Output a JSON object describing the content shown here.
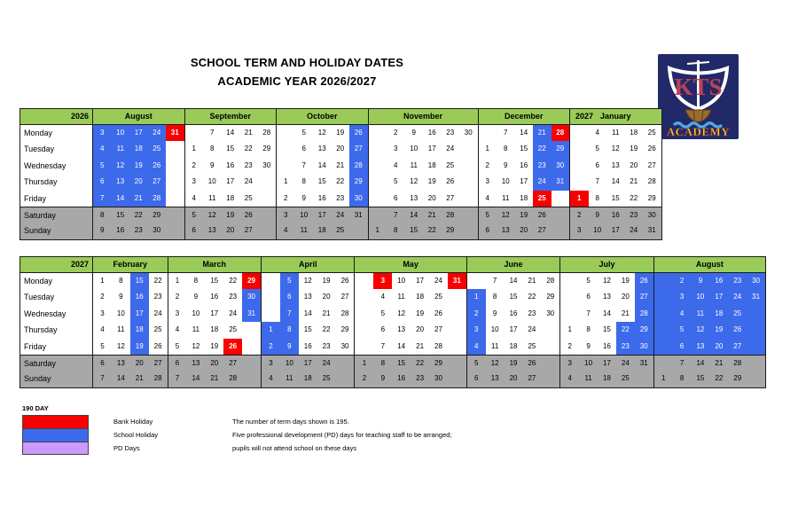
{
  "title": {
    "line1": "SCHOOL TERM AND HOLIDAY DATES",
    "line2": "ACADEMIC YEAR 2026/2027"
  },
  "logo": {
    "initials": "KTS",
    "name": "ACADEMY"
  },
  "colors": {
    "school_holiday_blue": "#3d6aeb",
    "bank_holiday_red": "#f90000",
    "header_green": "#9acb58",
    "weekend_gray": "#a8a8a8",
    "pd_days_purple": "#cc99ff",
    "logo_navy": "#222968"
  },
  "day_labels": [
    "Monday",
    "Tuesday",
    "Wednesday",
    "Thursday",
    "Friday",
    "Saturday",
    "Sunday"
  ],
  "tables": [
    {
      "year": "2026",
      "months": [
        {
          "prefix": "",
          "name": "August",
          "cols": 5,
          "cells": [
            [
              "3b",
              "10b",
              "17b",
              "24b",
              "31r"
            ],
            [
              "4b",
              "11b",
              "18b",
              "25b",
              ""
            ],
            [
              "5b",
              "12b",
              "19b",
              "26b",
              ""
            ],
            [
              "6b",
              "13b",
              "20b",
              "27b",
              ""
            ],
            [
              "7b",
              "14b",
              "21b",
              "28b",
              ""
            ],
            [
              "8",
              "15",
              "22",
              "29",
              ""
            ],
            [
              "9",
              "16",
              "23",
              "30",
              ""
            ]
          ]
        },
        {
          "prefix": "",
          "name": "September",
          "cols": 5,
          "cells": [
            [
              "",
              "7",
              "14",
              "21",
              "28"
            ],
            [
              "1",
              "8",
              "15",
              "22",
              "29"
            ],
            [
              "2",
              "9",
              "16",
              "23",
              "30"
            ],
            [
              "3",
              "10",
              "17",
              "24",
              ""
            ],
            [
              "4",
              "11",
              "18",
              "25",
              ""
            ],
            [
              "5",
              "12",
              "19",
              "26",
              ""
            ],
            [
              "6",
              "13",
              "20",
              "27",
              ""
            ]
          ]
        },
        {
          "prefix": "",
          "name": "October",
          "cols": 5,
          "cells": [
            [
              "",
              "5",
              "12",
              "19",
              "26b"
            ],
            [
              "",
              "6",
              "13",
              "20",
              "27b"
            ],
            [
              "",
              "7",
              "14",
              "21",
              "28b"
            ],
            [
              "1",
              "8",
              "15",
              "22",
              "29b"
            ],
            [
              "2",
              "9",
              "16",
              "23",
              "30b"
            ],
            [
              "3",
              "10",
              "17",
              "24",
              "31"
            ],
            [
              "4",
              "11",
              "18",
              "25",
              ""
            ]
          ]
        },
        {
          "prefix": "",
          "name": "November",
          "cols": 6,
          "cells": [
            [
              "",
              "2",
              "9",
              "16",
              "23",
              "30"
            ],
            [
              "",
              "3",
              "10",
              "17",
              "24",
              ""
            ],
            [
              "",
              "4",
              "11",
              "18",
              "25",
              ""
            ],
            [
              "",
              "5",
              "12",
              "19",
              "26",
              ""
            ],
            [
              "",
              "6",
              "13",
              "20",
              "27",
              ""
            ],
            [
              "",
              "7",
              "14",
              "21",
              "28",
              ""
            ],
            [
              "1",
              "8",
              "15",
              "22",
              "29",
              ""
            ]
          ]
        },
        {
          "prefix": "",
          "name": "December",
          "cols": 5,
          "cells": [
            [
              "",
              "7",
              "14",
              "21b",
              "28r"
            ],
            [
              "1",
              "8",
              "15",
              "22b",
              "29b"
            ],
            [
              "2",
              "9",
              "16",
              "23b",
              "30b"
            ],
            [
              "3",
              "10",
              "17",
              "24b",
              "31b"
            ],
            [
              "4",
              "11",
              "18",
              "25r",
              ""
            ],
            [
              "5",
              "12",
              "19",
              "26",
              ""
            ],
            [
              "6",
              "13",
              "20",
              "27",
              ""
            ]
          ]
        },
        {
          "prefix": "2027",
          "name": "January",
          "cols": 5,
          "cells": [
            [
              "",
              "4",
              "11",
              "18",
              "25"
            ],
            [
              "",
              "5",
              "12",
              "19",
              "26"
            ],
            [
              "",
              "6",
              "13",
              "20",
              "27"
            ],
            [
              "",
              "7",
              "14",
              "21",
              "28"
            ],
            [
              "1r",
              "8",
              "15",
              "22",
              "29"
            ],
            [
              "2",
              "9",
              "16",
              "23",
              "30"
            ],
            [
              "3",
              "10",
              "17",
              "24",
              "31"
            ]
          ]
        }
      ]
    },
    {
      "year": "2027",
      "months": [
        {
          "prefix": "",
          "name": "February",
          "cols": 4,
          "cells": [
            [
              "1",
              "8",
              "15b",
              "22"
            ],
            [
              "2",
              "9",
              "16b",
              "23"
            ],
            [
              "3",
              "10",
              "17b",
              "24"
            ],
            [
              "4",
              "11",
              "18b",
              "25"
            ],
            [
              "5",
              "12",
              "19b",
              "26"
            ],
            [
              "6",
              "13",
              "20",
              "27"
            ],
            [
              "7",
              "14",
              "21",
              "28"
            ]
          ]
        },
        {
          "prefix": "",
          "name": "March",
          "cols": 5,
          "cells": [
            [
              "1",
              "8",
              "15",
              "22",
              "29r"
            ],
            [
              "2",
              "9",
              "16",
              "23",
              "30b"
            ],
            [
              "3",
              "10",
              "17",
              "24",
              "31b"
            ],
            [
              "4",
              "11",
              "18",
              "25",
              ""
            ],
            [
              "5",
              "12",
              "19",
              "26r",
              ""
            ],
            [
              "6",
              "13",
              "20",
              "27",
              ""
            ],
            [
              "7",
              "14",
              "21",
              "28",
              ""
            ]
          ]
        },
        {
          "prefix": "",
          "name": "April",
          "cols": 5,
          "cells": [
            [
              "",
              "5b",
              "12",
              "19",
              "26"
            ],
            [
              "",
              "6b",
              "13",
              "20",
              "27"
            ],
            [
              "",
              "7b",
              "14",
              "21",
              "28"
            ],
            [
              "1b",
              "8b",
              "15",
              "22",
              "29"
            ],
            [
              "2b",
              "9b",
              "16",
              "23",
              "30"
            ],
            [
              "3",
              "10",
              "17",
              "24",
              ""
            ],
            [
              "4",
              "11",
              "18",
              "25",
              ""
            ]
          ]
        },
        {
          "prefix": "",
          "name": "May",
          "cols": 6,
          "cells": [
            [
              "",
              "3r",
              "10",
              "17",
              "24",
              "31r"
            ],
            [
              "",
              "4",
              "11",
              "18",
              "25",
              ""
            ],
            [
              "",
              "5",
              "12",
              "19",
              "26",
              ""
            ],
            [
              "",
              "6",
              "13",
              "20",
              "27",
              ""
            ],
            [
              "",
              "7",
              "14",
              "21",
              "28",
              ""
            ],
            [
              "1",
              "8",
              "15",
              "22",
              "29",
              ""
            ],
            [
              "2",
              "9",
              "16",
              "23",
              "30",
              ""
            ]
          ]
        },
        {
          "prefix": "",
          "name": "June",
          "cols": 5,
          "cells": [
            [
              "",
              "7",
              "14",
              "21",
              "28"
            ],
            [
              "1b",
              "8",
              "15",
              "22",
              "29"
            ],
            [
              "2b",
              "9",
              "16",
              "23",
              "30"
            ],
            [
              "3b",
              "10",
              "17",
              "24",
              ""
            ],
            [
              "4b",
              "11",
              "18",
              "25",
              ""
            ],
            [
              "5",
              "12",
              "19",
              "26",
              ""
            ],
            [
              "6",
              "13",
              "20",
              "27",
              ""
            ]
          ]
        },
        {
          "prefix": "",
          "name": "July",
          "cols": 5,
          "cells": [
            [
              "",
              "5",
              "12",
              "19",
              "26b"
            ],
            [
              "",
              "6",
              "13",
              "20",
              "27b"
            ],
            [
              "",
              "7",
              "14",
              "21",
              "28b"
            ],
            [
              "1",
              "8",
              "15",
              "22b",
              "29b"
            ],
            [
              "2",
              "9",
              "16",
              "23b",
              "30b"
            ],
            [
              "3",
              "10",
              "17",
              "24",
              "31"
            ],
            [
              "4",
              "11",
              "18",
              "25",
              ""
            ]
          ]
        },
        {
          "prefix": "",
          "name": "August",
          "cols": 6,
          "cells": [
            [
              "b",
              "2b",
              "9b",
              "16b",
              "23b",
              "30b"
            ],
            [
              "b",
              "3b",
              "10b",
              "17b",
              "24b",
              "31b"
            ],
            [
              "b",
              "4b",
              "11b",
              "18b",
              "25b",
              "b"
            ],
            [
              "b",
              "5b",
              "12b",
              "19b",
              "26b",
              "b"
            ],
            [
              "b",
              "6b",
              "13b",
              "20b",
              "27b",
              "b"
            ],
            [
              "",
              "7",
              "14",
              "21",
              "28",
              ""
            ],
            [
              "1",
              "8",
              "15",
              "22",
              "29",
              ""
            ]
          ]
        }
      ]
    }
  ],
  "legend": {
    "heading": "190 DAY",
    "items": [
      {
        "color": "#f90000",
        "label": "Bank Holiday",
        "note": "The number of term days shown is 195."
      },
      {
        "color": "#3d6aeb",
        "label": "School Holiday",
        "note": "Five professional development (PD) days for teaching staff to be arranged;"
      },
      {
        "color": "#cc99ff",
        "label": "PD Days",
        "note": "pupils will not attend school on these days"
      }
    ]
  }
}
